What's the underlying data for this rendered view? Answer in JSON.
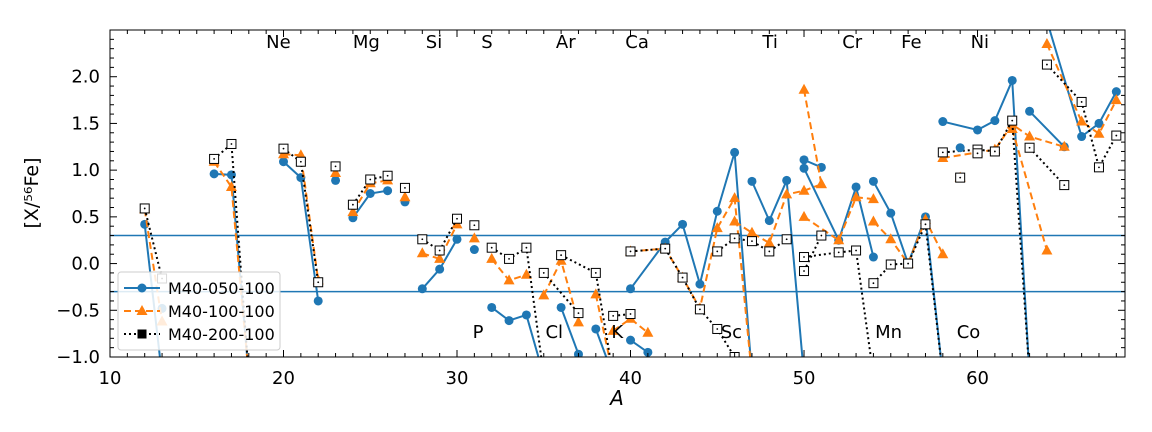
{
  "chart_data": {
    "type": "line",
    "xlabel": "A",
    "ylabel": "[X/⁵⁶Fe]",
    "xlim": [
      10,
      68.5
    ],
    "ylim": [
      -1.0,
      2.5
    ],
    "xticks": [
      10,
      20,
      30,
      40,
      50,
      60
    ],
    "yticks": [
      -1.0,
      -0.5,
      0.0,
      0.5,
      1.0,
      1.5,
      2.0
    ],
    "xtick_labels": [
      "10",
      "20",
      "30",
      "40",
      "50",
      "60"
    ],
    "ytick_labels": [
      "−1.0",
      "−0.5",
      "0.0",
      "0.5",
      "1.0",
      "1.5",
      "2.0"
    ],
    "hlines": [
      0.3,
      -0.3
    ],
    "legend_position": "lower-left",
    "grid": false,
    "element_labels_top": [
      {
        "text": "Ne",
        "x": 19
      },
      {
        "text": "Mg",
        "x": 24
      },
      {
        "text": "Si",
        "x": 28.2
      },
      {
        "text": "S",
        "x": 31.4
      },
      {
        "text": "Ar",
        "x": 35.7
      },
      {
        "text": "Ca",
        "x": 39.7
      },
      {
        "text": "Ti",
        "x": 47.6
      },
      {
        "text": "Cr",
        "x": 52.2
      },
      {
        "text": "Fe",
        "x": 55.6
      },
      {
        "text": "Ni",
        "x": 59.6
      }
    ],
    "element_labels_bottom": [
      {
        "text": "P",
        "x": 30.9
      },
      {
        "text": "Cl",
        "x": 35.1
      },
      {
        "text": "K",
        "x": 38.9
      },
      {
        "text": "Sc",
        "x": 45.2
      },
      {
        "text": "Mn",
        "x": 54.1
      },
      {
        "text": "Co",
        "x": 58.8
      }
    ],
    "series": [
      {
        "name": "M40-050-100",
        "color": "#1f77b4",
        "linestyle": "solid",
        "marker": "circle",
        "segments": [
          [
            [
              12,
              0.42
            ],
            [
              13,
              -1.2
            ]
          ],
          [
            [
              13,
              -0.48
            ]
          ],
          [
            [
              16,
              0.96
            ],
            [
              17,
              0.95
            ],
            [
              18,
              -1.2
            ]
          ],
          [
            [
              20,
              1.09
            ],
            [
              21,
              0.92
            ],
            [
              22,
              -0.4
            ]
          ],
          [
            [
              23,
              0.89
            ]
          ],
          [
            [
              24,
              0.49
            ],
            [
              25,
              0.75
            ],
            [
              26,
              0.78
            ]
          ],
          [
            [
              27,
              0.66
            ]
          ],
          [
            [
              28,
              -0.27
            ],
            [
              29,
              -0.06
            ],
            [
              30,
              0.26
            ]
          ],
          [
            [
              31,
              0.15
            ]
          ],
          [
            [
              32,
              -0.47
            ],
            [
              33,
              -0.61
            ],
            [
              34,
              -0.55
            ],
            [
              35,
              -1.2
            ]
          ],
          [
            [
              36,
              -0.47
            ],
            [
              37,
              -0.97
            ]
          ],
          [
            [
              38,
              -0.7
            ],
            [
              39,
              -1.2
            ]
          ],
          [
            [
              40,
              -0.82
            ],
            [
              41,
              -0.95
            ]
          ],
          [
            [
              40,
              -0.27
            ],
            [
              42,
              0.23
            ],
            [
              43,
              0.42
            ],
            [
              44,
              -0.22
            ],
            [
              45,
              0.56
            ],
            [
              46,
              1.19
            ],
            [
              47,
              -1.2
            ]
          ],
          [
            [
              47,
              0.88
            ],
            [
              48,
              0.46
            ],
            [
              49,
              0.89
            ],
            [
              50,
              -1.2
            ]
          ],
          [
            [
              50,
              1.11
            ],
            [
              51,
              1.03
            ]
          ],
          [
            [
              50,
              1.02
            ],
            [
              52,
              0.25
            ],
            [
              53,
              0.82
            ],
            [
              54,
              0.07
            ]
          ],
          [
            [
              54,
              0.88
            ],
            [
              55,
              0.54
            ],
            [
              56,
              0.0
            ],
            [
              57,
              0.5
            ],
            [
              58,
              -1.2
            ]
          ],
          [
            [
              58,
              1.52
            ],
            [
              60,
              1.43
            ],
            [
              61,
              1.53
            ],
            [
              62,
              1.96
            ],
            [
              63,
              -1.2
            ]
          ],
          [
            [
              63,
              1.63
            ],
            [
              65,
              1.25
            ]
          ],
          [
            [
              64,
              2.6
            ],
            [
              66,
              1.36
            ],
            [
              67,
              1.5
            ],
            [
              68,
              1.84
            ]
          ]
        ]
      },
      {
        "name": "M40-100-100",
        "color": "#ff7f0e",
        "linestyle": "dashed",
        "marker": "triangle",
        "segments": [
          [
            [
              12,
              0.58
            ],
            [
              13,
              -0.62
            ]
          ],
          [
            [
              16,
              1.09
            ],
            [
              17,
              0.82
            ],
            [
              18,
              -1.2
            ]
          ],
          [
            [
              20,
              1.17
            ],
            [
              21,
              1.16
            ],
            [
              22,
              -0.18
            ]
          ],
          [
            [
              23,
              0.97
            ]
          ],
          [
            [
              24,
              0.55
            ],
            [
              25,
              0.86
            ],
            [
              26,
              0.89
            ]
          ],
          [
            [
              27,
              0.71
            ]
          ],
          [
            [
              28,
              0.11
            ],
            [
              29,
              0.05
            ],
            [
              30,
              0.42
            ]
          ],
          [
            [
              31,
              0.27
            ]
          ],
          [
            [
              32,
              0.05
            ],
            [
              33,
              -0.18
            ],
            [
              34,
              -0.12
            ]
          ],
          [
            [
              35,
              -0.34
            ],
            [
              36,
              0.03
            ],
            [
              37,
              -0.63
            ]
          ],
          [
            [
              38,
              -0.33
            ],
            [
              39,
              -1.2
            ]
          ],
          [
            [
              39,
              -0.72
            ],
            [
              40,
              -0.59
            ],
            [
              41,
              -0.74
            ]
          ],
          [
            [
              40,
              0.13
            ],
            [
              42,
              0.16
            ],
            [
              43,
              -0.15
            ],
            [
              44,
              -0.48
            ],
            [
              45,
              0.38
            ],
            [
              46,
              0.7
            ],
            [
              47,
              -1.2
            ]
          ],
          [
            [
              46,
              0.45
            ],
            [
              47,
              0.33
            ],
            [
              48,
              0.22
            ],
            [
              49,
              0.74
            ],
            [
              50,
              0.78
            ],
            [
              51,
              0.85
            ]
          ],
          [
            [
              50,
              1.86
            ],
            [
              51,
              0.85
            ]
          ],
          [
            [
              50,
              0.5
            ],
            [
              52,
              0.25
            ],
            [
              53,
              0.71
            ],
            [
              54,
              0.69
            ]
          ],
          [
            [
              54,
              0.45
            ],
            [
              55,
              0.26
            ],
            [
              56,
              0.0
            ],
            [
              57,
              0.47
            ],
            [
              58,
              0.1
            ]
          ],
          [
            [
              58,
              1.13
            ],
            [
              60,
              1.19
            ],
            [
              61,
              1.22
            ],
            [
              62,
              1.49
            ],
            [
              63,
              1.36
            ],
            [
              65,
              1.25
            ]
          ],
          [
            [
              64,
              2.35
            ],
            [
              66,
              1.52
            ],
            [
              67,
              1.39
            ],
            [
              68,
              1.75
            ]
          ],
          [
            [
              62,
              1.44
            ],
            [
              64,
              0.14
            ]
          ]
        ]
      },
      {
        "name": "M40-200-100",
        "color": "#000000",
        "linestyle": "dotted",
        "marker": "square",
        "segments": [
          [
            [
              12,
              0.59
            ],
            [
              13,
              -0.16
            ]
          ],
          [
            [
              16,
              1.12
            ],
            [
              17,
              1.28
            ],
            [
              18,
              -1.2
            ]
          ],
          [
            [
              20,
              1.23
            ],
            [
              21,
              1.09
            ],
            [
              22,
              -0.2
            ]
          ],
          [
            [
              23,
              1.04
            ]
          ],
          [
            [
              24,
              0.63
            ],
            [
              25,
              0.9
            ],
            [
              26,
              0.94
            ]
          ],
          [
            [
              27,
              0.81
            ]
          ],
          [
            [
              28,
              0.26
            ],
            [
              29,
              0.14
            ],
            [
              30,
              0.48
            ]
          ],
          [
            [
              31,
              0.41
            ]
          ],
          [
            [
              32,
              0.17
            ],
            [
              33,
              0.05
            ],
            [
              34,
              0.17
            ],
            [
              35,
              -1.2
            ]
          ],
          [
            [
              35,
              -0.1
            ],
            [
              37,
              -0.53
            ]
          ],
          [
            [
              36,
              0.09
            ],
            [
              38,
              -0.1
            ],
            [
              39,
              -1.2
            ]
          ],
          [
            [
              39,
              -0.56
            ],
            [
              40,
              -0.54
            ]
          ],
          [
            [
              40,
              0.13
            ],
            [
              42,
              0.16
            ],
            [
              43,
              -0.15
            ],
            [
              44,
              -0.49
            ],
            [
              45,
              -0.7
            ],
            [
              46,
              -1.0
            ]
          ],
          [
            [
              45,
              0.13
            ],
            [
              46,
              0.27
            ],
            [
              47,
              0.24
            ],
            [
              48,
              0.13
            ],
            [
              49,
              0.26
            ]
          ],
          [
            [
              50,
              0.07
            ],
            [
              52,
              0.12
            ],
            [
              53,
              0.14
            ],
            [
              54,
              -1.2
            ]
          ],
          [
            [
              50,
              -0.08
            ],
            [
              51,
              0.3
            ]
          ],
          [
            [
              54,
              -0.21
            ],
            [
              55,
              -0.01
            ],
            [
              56,
              0.0
            ],
            [
              57,
              0.42
            ],
            [
              58,
              -1.2
            ]
          ],
          [
            [
              58,
              1.19
            ],
            [
              60,
              1.22
            ],
            [
              61,
              1.2
            ],
            [
              62,
              1.53
            ],
            [
              63,
              -1.2
            ]
          ],
          [
            [
              63,
              1.24
            ],
            [
              65,
              0.84
            ]
          ],
          [
            [
              64,
              2.13
            ],
            [
              66,
              1.73
            ],
            [
              67,
              1.03
            ],
            [
              68,
              1.37
            ]
          ]
        ]
      }
    ],
    "extra_points": [
      {
        "series": 1,
        "x": 59,
        "y": 0.92
      },
      {
        "series": 2,
        "x": 59,
        "y": 0.92
      },
      {
        "series": 0,
        "x": 59,
        "y": 1.24
      },
      {
        "series": 2,
        "x": 60,
        "y": 1.18
      }
    ]
  }
}
